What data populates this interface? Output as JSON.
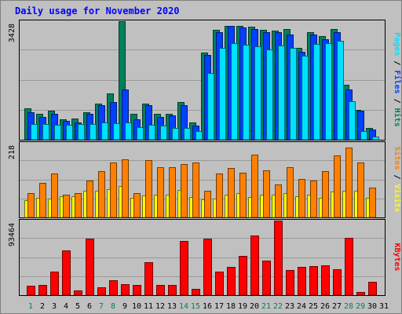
{
  "title": "Daily usage for November 2020",
  "colors": {
    "background": "#c0c0c0",
    "hits": "#00805c",
    "files": "#0040ff",
    "pages": "#00e0ff",
    "visits": "#ffff00",
    "sites": "#ff8000",
    "kbytes": "#ff0000",
    "title": "#0000ff",
    "day_weekday": "#000000",
    "day_weekend": "#00805c"
  },
  "chart_data": [
    {
      "type": "bar",
      "panel": "top",
      "ymax_label": "3428",
      "ymax": 3428,
      "side_label": [
        {
          "text": "Pages",
          "color_key": "pages"
        },
        {
          "text": " / ",
          "color_key": "day_weekday"
        },
        {
          "text": "Files",
          "color_key": "files"
        },
        {
          "text": " / ",
          "color_key": "day_weekday"
        },
        {
          "text": "Hits",
          "color_key": "hits"
        }
      ],
      "categories": [
        "1",
        "2",
        "3",
        "4",
        "5",
        "6",
        "7",
        "8",
        "9",
        "10",
        "11",
        "12",
        "13",
        "14",
        "15",
        "16",
        "17",
        "18",
        "19",
        "20",
        "21",
        "22",
        "23",
        "24",
        "25",
        "26",
        "27",
        "28",
        "29",
        "30",
        "31"
      ],
      "series": [
        {
          "name": "Hits",
          "color_key": "hits",
          "values": [
            900,
            750,
            850,
            600,
            620,
            800,
            1050,
            1350,
            3428,
            750,
            1050,
            750,
            750,
            1080,
            500,
            2520,
            3180,
            3300,
            3300,
            3260,
            3180,
            3160,
            3200,
            2650,
            3100,
            3000,
            3200,
            1600,
            870,
            350,
            0
          ]
        },
        {
          "name": "Files",
          "color_key": "files",
          "values": [
            800,
            650,
            750,
            550,
            500,
            750,
            1000,
            1100,
            1450,
            600,
            1000,
            650,
            700,
            1000,
            400,
            2450,
            3100,
            3300,
            3250,
            3200,
            3100,
            3100,
            3050,
            2550,
            3050,
            2900,
            3100,
            1450,
            850,
            300,
            0
          ]
        },
        {
          "name": "Pages",
          "color_key": "pages",
          "values": [
            450,
            450,
            430,
            420,
            450,
            450,
            500,
            480,
            510,
            370,
            420,
            410,
            340,
            350,
            250,
            1930,
            2650,
            2800,
            2750,
            2700,
            2600,
            2720,
            2650,
            2430,
            2780,
            2800,
            2850,
            1120,
            240,
            100,
            0
          ]
        }
      ]
    },
    {
      "type": "bar",
      "panel": "middle",
      "ymax_label": "218",
      "ymax": 218,
      "side_label": [
        {
          "text": "Sites",
          "color_key": "sites"
        },
        {
          "text": " / ",
          "color_key": "day_weekday"
        },
        {
          "text": "Visits",
          "color_key": "visits"
        }
      ],
      "categories": [
        "1",
        "2",
        "3",
        "4",
        "5",
        "6",
        "7",
        "8",
        "9",
        "10",
        "11",
        "12",
        "13",
        "14",
        "15",
        "16",
        "17",
        "18",
        "19",
        "20",
        "21",
        "22",
        "23",
        "24",
        "25",
        "26",
        "27",
        "28",
        "29",
        "30",
        "31"
      ],
      "series": [
        {
          "name": "Visits",
          "color_key": "visits",
          "values": [
            50,
            57,
            55,
            62,
            62,
            77,
            77,
            82,
            92,
            57,
            65,
            67,
            67,
            80,
            60,
            52,
            55,
            67,
            70,
            60,
            67,
            67,
            72,
            62,
            67,
            57,
            75,
            77,
            77,
            57,
            0
          ]
        },
        {
          "name": "Sites",
          "color_key": "sites",
          "values": [
            72,
            100,
            128,
            67,
            72,
            108,
            135,
            160,
            170,
            72,
            168,
            147,
            146,
            156,
            160,
            78,
            128,
            145,
            131,
            183,
            137,
            97,
            146,
            112,
            107,
            135,
            181,
            205,
            160,
            87,
            0
          ]
        }
      ]
    },
    {
      "type": "bar",
      "panel": "bottom",
      "ymax_label": "93464",
      "ymax": 93464,
      "side_label": [
        {
          "text": "KBytes",
          "color_key": "kbytes"
        }
      ],
      "categories": [
        "1",
        "2",
        "3",
        "4",
        "5",
        "6",
        "7",
        "8",
        "9",
        "10",
        "11",
        "12",
        "13",
        "14",
        "15",
        "16",
        "17",
        "18",
        "19",
        "20",
        "21",
        "22",
        "23",
        "24",
        "25",
        "26",
        "27",
        "28",
        "29",
        "30",
        "31"
      ],
      "series": [
        {
          "name": "KBytes",
          "color_key": "kbytes",
          "values": [
            12000,
            13000,
            30000,
            56000,
            6000,
            71000,
            10000,
            19000,
            14000,
            13000,
            41000,
            13000,
            13000,
            68000,
            8000,
            71000,
            30000,
            35000,
            49000,
            75000,
            43000,
            93464,
            31000,
            35000,
            36000,
            37000,
            32000,
            72000,
            4000,
            17000,
            0
          ]
        }
      ]
    }
  ],
  "days": [
    "1",
    "2",
    "3",
    "4",
    "5",
    "6",
    "7",
    "8",
    "9",
    "10",
    "11",
    "12",
    "13",
    "14",
    "15",
    "16",
    "17",
    "18",
    "19",
    "20",
    "21",
    "22",
    "23",
    "24",
    "25",
    "26",
    "27",
    "28",
    "29",
    "30",
    "31"
  ],
  "weekend_days": [
    "1",
    "7",
    "8",
    "14",
    "15",
    "21",
    "22",
    "28",
    "29"
  ]
}
